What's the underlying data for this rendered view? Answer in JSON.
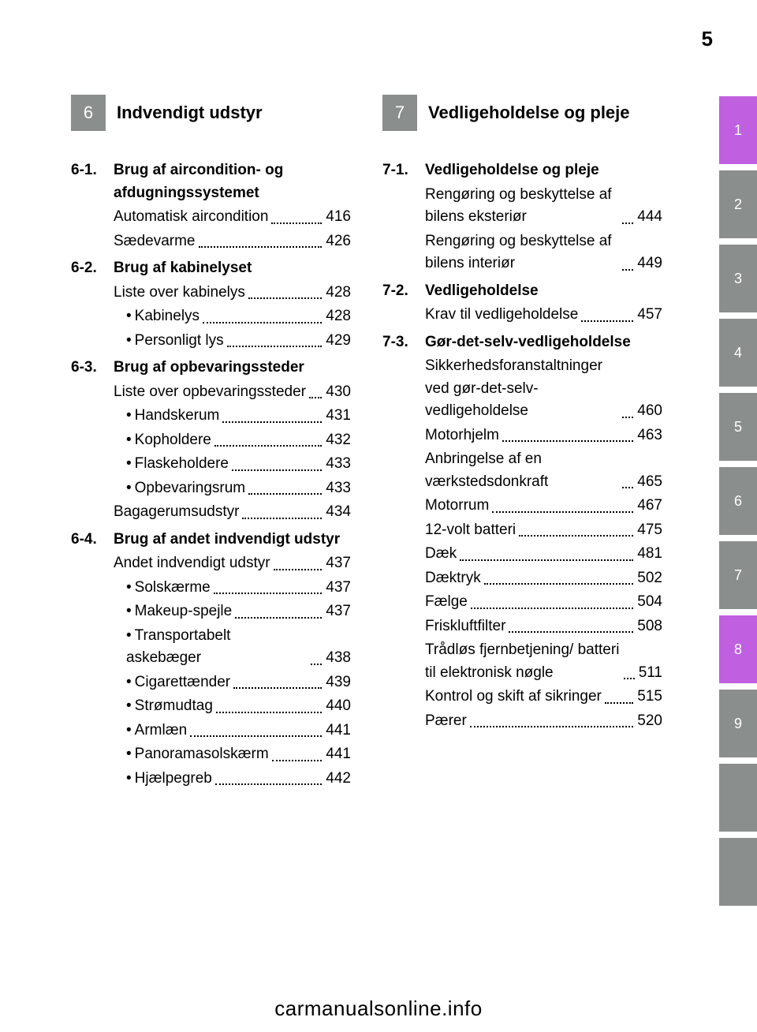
{
  "page_number": "5",
  "footer_url": "carmanualsonline.info",
  "side_tabs": [
    {
      "label": "1",
      "color": "purple"
    },
    {
      "label": "2",
      "color": "gray"
    },
    {
      "label": "3",
      "color": "gray"
    },
    {
      "label": "4",
      "color": "gray"
    },
    {
      "label": "5",
      "color": "gray"
    },
    {
      "label": "6",
      "color": "gray"
    },
    {
      "label": "7",
      "color": "gray"
    },
    {
      "label": "8",
      "color": "purple"
    },
    {
      "label": "9",
      "color": "gray"
    },
    {
      "label": "",
      "color": "gray"
    },
    {
      "label": "",
      "color": "gray"
    }
  ],
  "left": {
    "chapter_num": "6",
    "chapter_title": "Indvendigt udstyr",
    "sections": [
      {
        "num": "6-1.",
        "title": "Brug af aircondition- og afdugningssystemet",
        "entries": [
          {
            "label": "Automatisk aircondition",
            "page": "416"
          },
          {
            "label": "Sædevarme",
            "page": "426"
          }
        ]
      },
      {
        "num": "6-2.",
        "title": "Brug af kabinelyset",
        "entries": [
          {
            "label": "Liste over kabinelys",
            "page": "428"
          },
          {
            "label": "Kabinelys",
            "page": "428",
            "sub": true
          },
          {
            "label": "Personligt lys",
            "page": "429",
            "sub": true
          }
        ]
      },
      {
        "num": "6-3.",
        "title": "Brug af opbevaringssteder",
        "entries": [
          {
            "label": "Liste over opbevaringssteder",
            "page": "430"
          },
          {
            "label": "Handskerum",
            "page": "431",
            "sub": true
          },
          {
            "label": "Kopholdere",
            "page": "432",
            "sub": true
          },
          {
            "label": "Flaskeholdere",
            "page": "433",
            "sub": true
          },
          {
            "label": "Opbevaringsrum",
            "page": "433",
            "sub": true
          },
          {
            "label": "Bagagerumsudstyr",
            "page": "434"
          }
        ]
      },
      {
        "num": "6-4.",
        "title": "Brug af andet indvendigt udstyr",
        "entries": [
          {
            "label": "Andet indvendigt udstyr",
            "page": "437"
          },
          {
            "label": "Solskærme",
            "page": "437",
            "sub": true
          },
          {
            "label": "Makeup-spejle",
            "page": "437",
            "sub": true
          },
          {
            "label": "Transportabelt askebæger",
            "page": "438",
            "sub": true
          },
          {
            "label": "Cigarettænder",
            "page": "439",
            "sub": true
          },
          {
            "label": "Strømudtag",
            "page": "440",
            "sub": true
          },
          {
            "label": "Armlæn",
            "page": "441",
            "sub": true
          },
          {
            "label": "Panoramasolskærm",
            "page": "441",
            "sub": true
          },
          {
            "label": "Hjælpegreb",
            "page": "442",
            "sub": true
          }
        ]
      }
    ]
  },
  "right": {
    "chapter_num": "7",
    "chapter_title": "Vedligeholdelse og pleje",
    "sections": [
      {
        "num": "7-1.",
        "title": "Vedligeholdelse og pleje",
        "entries": [
          {
            "label": "Rengøring og beskyttelse af bilens eksteriør",
            "page": "444"
          },
          {
            "label": "Rengøring og beskyttelse af bilens interiør",
            "page": "449"
          }
        ]
      },
      {
        "num": "7-2.",
        "title": "Vedligeholdelse",
        "entries": [
          {
            "label": "Krav til vedligeholdelse",
            "page": "457"
          }
        ]
      },
      {
        "num": "7-3.",
        "title": "Gør-det-selv-vedligeholdelse",
        "entries": [
          {
            "label": "Sikkerhedsforanstaltninger ved gør-det-selv-vedligeholdelse",
            "page": "460"
          },
          {
            "label": "Motorhjelm",
            "page": "463"
          },
          {
            "label": "Anbringelse af en værkstedsdonkraft",
            "page": "465"
          },
          {
            "label": "Motorrum",
            "page": "467"
          },
          {
            "label": "12-volt batteri",
            "page": "475"
          },
          {
            "label": "Dæk",
            "page": "481"
          },
          {
            "label": "Dæktryk",
            "page": "502"
          },
          {
            "label": "Fælge",
            "page": "504"
          },
          {
            "label": "Friskluftfilter",
            "page": "508"
          },
          {
            "label": "Trådløs fjernbetjening/ batteri til elektronisk nøgle",
            "page": "511"
          },
          {
            "label": "Kontrol og skift af sikringer",
            "page": "515"
          },
          {
            "label": "Pærer",
            "page": "520"
          }
        ]
      }
    ]
  },
  "colors": {
    "gray": "#8a8e8c",
    "purple": "#c060e0",
    "text": "#000000",
    "bg": "#ffffff"
  }
}
